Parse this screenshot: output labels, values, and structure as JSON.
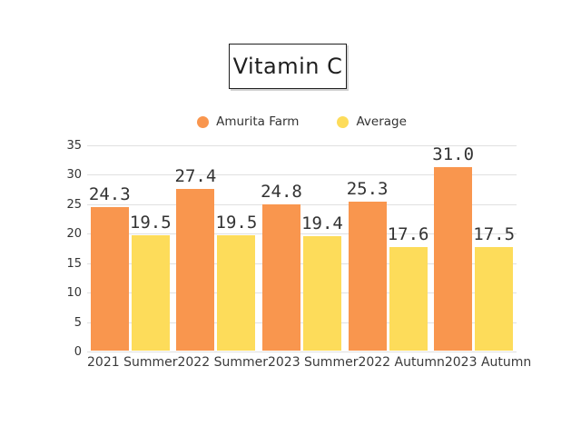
{
  "title": "Vitamin C",
  "legend": [
    {
      "label": "Amurita Farm",
      "color": "#F9964E"
    },
    {
      "label": "Average",
      "color": "#FDDC5A"
    }
  ],
  "chart_data": {
    "type": "bar",
    "title": "Vitamin C",
    "categories": [
      "2021 Summer",
      "2022 Summer",
      "2023 Summer",
      "2022 Autumn",
      "2023 Autumn"
    ],
    "series": [
      {
        "name": "Amurita Farm",
        "color": "#F9964E",
        "values": [
          24.3,
          27.4,
          24.8,
          25.3,
          31.0
        ]
      },
      {
        "name": "Average",
        "color": "#FDDC5A",
        "values": [
          19.5,
          19.5,
          19.4,
          17.6,
          17.5
        ]
      }
    ],
    "xlabel": "",
    "ylabel": "",
    "ylim": [
      0,
      35
    ],
    "ytick_step": 5,
    "grid": true,
    "legend_position": "top",
    "value_label_format": "one-decimal"
  },
  "colors": {
    "grid": "#E0E0E0",
    "text": "#333333",
    "background": "#FFFFFF",
    "box_border": "#1F1F1F"
  }
}
